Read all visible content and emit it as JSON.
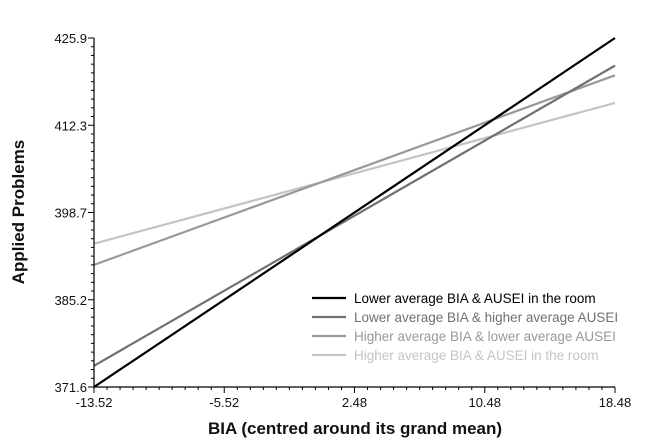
{
  "chart_data": {
    "type": "line",
    "title": "",
    "xlabel": "BIA (centred around its grand mean)",
    "ylabel": "Applied Problems",
    "xlim": [
      -13.52,
      18.48
    ],
    "ylim": [
      371.6,
      425.9
    ],
    "x_ticks": [
      "-13.52",
      "-5.52",
      "2.48",
      "10.48",
      "18.48"
    ],
    "y_ticks": [
      "371.6",
      "385.2",
      "398.7",
      "412.3",
      "425.9"
    ],
    "grid": false,
    "legend_position": "bottom-right",
    "series": [
      {
        "name": "Lower average BIA & AUSEI in the room",
        "color": "#000000",
        "x": [
          -13.52,
          18.48
        ],
        "y": [
          371.6,
          425.9
        ]
      },
      {
        "name": "Lower average BIA & higher average AUSEI",
        "color": "#707070",
        "x": [
          -13.52,
          18.48
        ],
        "y": [
          374.9,
          421.6
        ]
      },
      {
        "name": "Higher average BIA & lower average AUSEI",
        "color": "#999999",
        "x": [
          -13.52,
          18.48
        ],
        "y": [
          390.6,
          420.1
        ]
      },
      {
        "name": "Higher average BIA & AUSEI in the room",
        "color": "#c4c4c4",
        "x": [
          -13.52,
          18.48
        ],
        "y": [
          393.9,
          415.8
        ]
      }
    ]
  }
}
